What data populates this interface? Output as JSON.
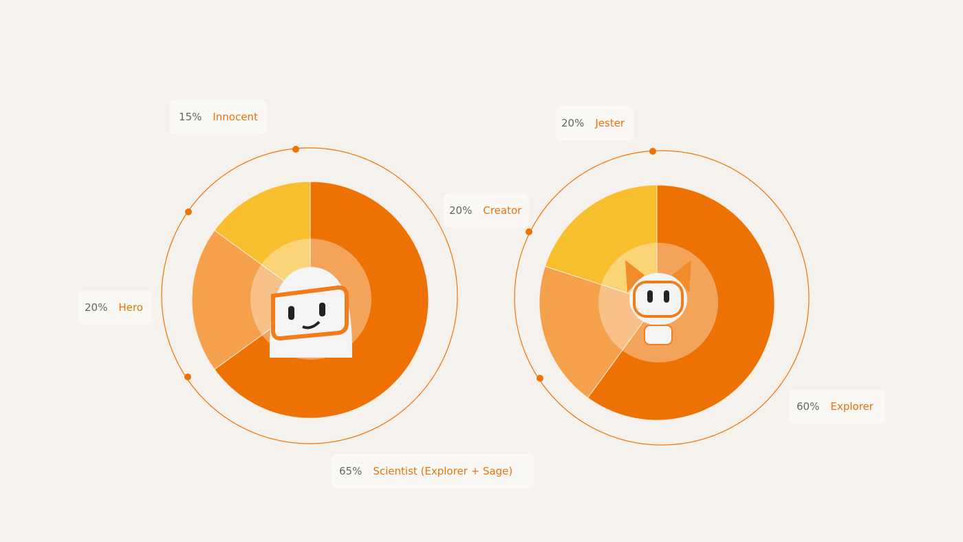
{
  "chart_data": [
    {
      "type": "pie",
      "categories": [
        "Scientist (Explorer + Sage)",
        "Hero",
        "Innocent"
      ],
      "values": [
        65,
        20,
        15
      ],
      "value_labels": [
        "65%",
        "20%",
        "15%"
      ],
      "colors": [
        "#ee7203",
        "#f5a04a",
        "#f7be2e"
      ]
    },
    {
      "type": "pie",
      "categories": [
        "Explorer",
        "Creator",
        "Jester"
      ],
      "values": [
        60,
        20,
        20
      ],
      "value_labels": [
        "60%",
        "20%",
        "20%"
      ],
      "colors": [
        "#ee7203",
        "#f5a04a",
        "#f7be2e"
      ]
    }
  ]
}
